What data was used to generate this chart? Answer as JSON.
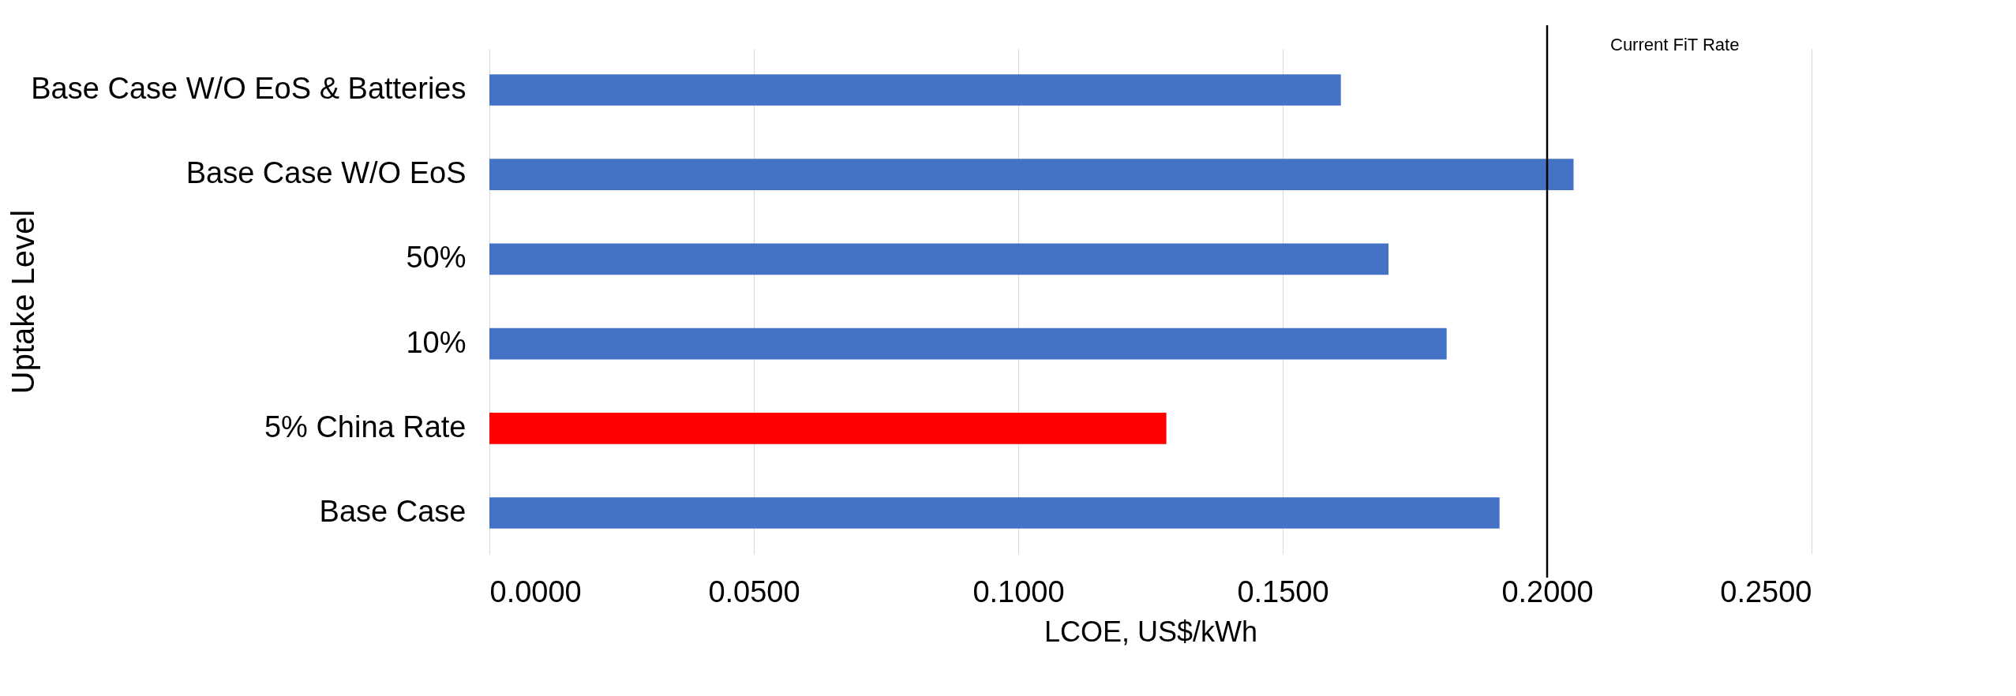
{
  "chart_data": {
    "type": "bar",
    "orientation": "horizontal",
    "xlabel": "LCOE, US$/kWh",
    "ylabel": "Uptake Level",
    "categories": [
      "Base Case W/O EoS & Batteries",
      "Base Case W/O EoS",
      "50%",
      "10%",
      "5% China Rate",
      "Base Case"
    ],
    "values": [
      0.161,
      0.205,
      0.17,
      0.181,
      0.128,
      0.191
    ],
    "colors": [
      "#4472c4",
      "#4472c4",
      "#4472c4",
      "#4472c4",
      "#ff0000",
      "#4472c4"
    ],
    "xlim": [
      0,
      0.25
    ],
    "xticks": [
      {
        "value": 0,
        "label": "0.0000"
      },
      {
        "value": 0.05,
        "label": "0.0500"
      },
      {
        "value": 0.1,
        "label": "0.1000"
      },
      {
        "value": 0.15,
        "label": "0.1500"
      },
      {
        "value": 0.2,
        "label": "0.2000"
      },
      {
        "value": 0.25,
        "label": "0.2500"
      }
    ],
    "grid": "x",
    "ref_lines": [
      {
        "axis": "x",
        "value": 0.2,
        "label": "Current FiT Rate",
        "color": "#000000"
      }
    ]
  }
}
